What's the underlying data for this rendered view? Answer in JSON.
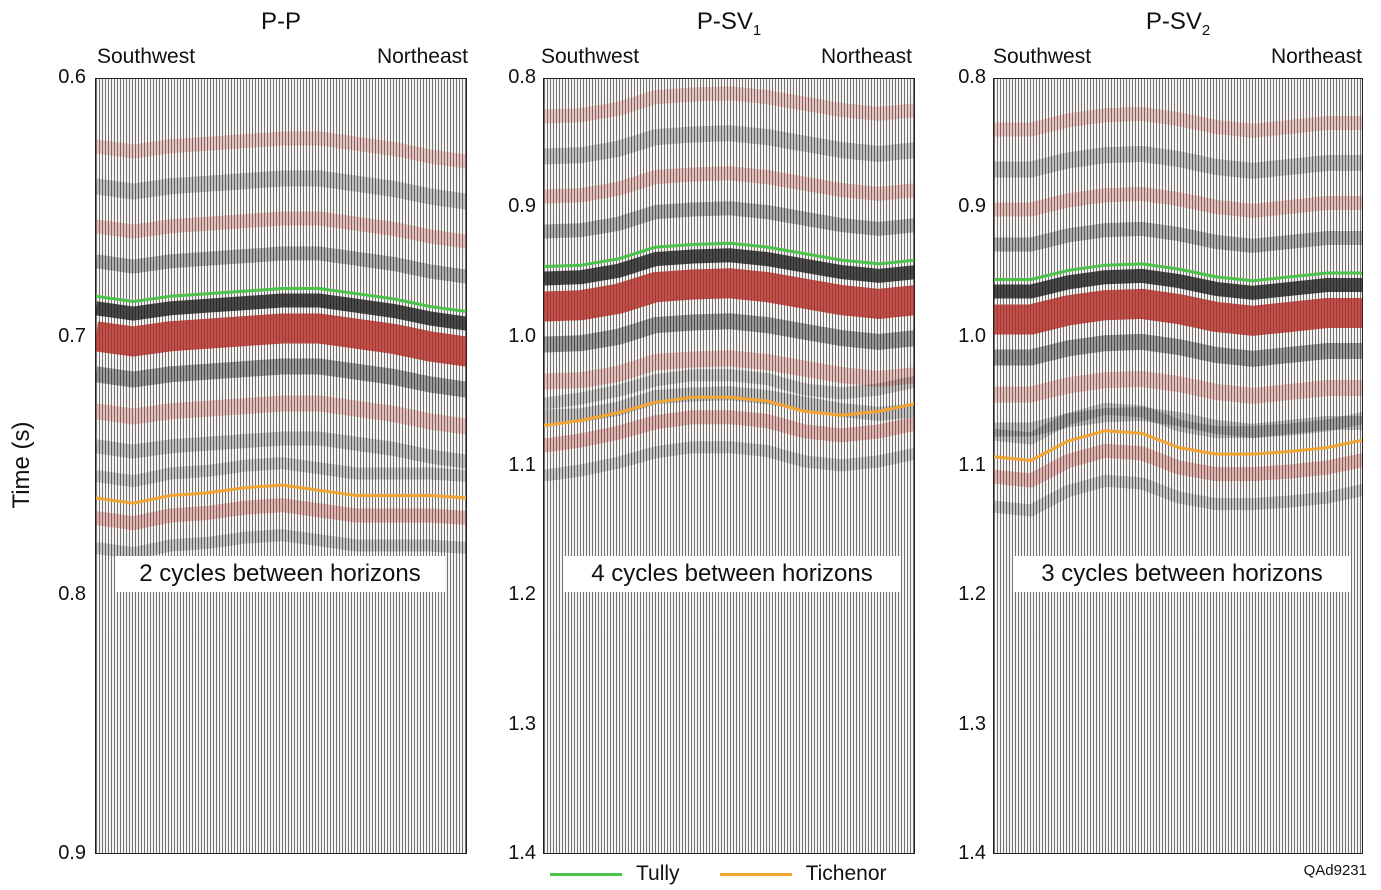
{
  "y_axis_label": "Time (s)",
  "figure_id": "QAd9231",
  "colors": {
    "tully": "#4cc34a",
    "tichenor": "#f2a532",
    "red_event": "#b02820",
    "black_event": "#111111"
  },
  "legend": [
    {
      "name": "Tully",
      "color": "#4cc34a"
    },
    {
      "name": "Tichenor",
      "color": "#f2a532"
    }
  ],
  "panels": [
    {
      "title_main": "P-P",
      "title_sub": "",
      "left_label": "Southwest",
      "right_label": "Northeast",
      "callout": "2 cycles between horizons",
      "yticks": [
        "0.6",
        "0.7",
        "0.8",
        "0.9"
      ]
    },
    {
      "title_main": "P-SV",
      "title_sub": "1",
      "left_label": "Southwest",
      "right_label": "Northeast",
      "callout": "4 cycles between horizons",
      "yticks": [
        "0.8",
        "0.9",
        "1.0",
        "1.1",
        "1.2",
        "1.3",
        "1.4"
      ]
    },
    {
      "title_main": "P-SV",
      "title_sub": "2",
      "left_label": "Southwest",
      "right_label": "Northeast",
      "callout": "3 cycles between horizons",
      "yticks": [
        "0.8",
        "0.9",
        "1.0",
        "1.1",
        "1.2",
        "1.3",
        "1.4"
      ]
    }
  ],
  "chart_data": [
    {
      "type": "line",
      "title": "P-P",
      "xlabel": "",
      "ylabel": "Time (s)",
      "x_labels": [
        "Southwest",
        "Northeast"
      ],
      "ylim": [
        0.9,
        0.6
      ],
      "yticks": [
        0.6,
        0.7,
        0.8,
        0.9
      ],
      "x": [
        0,
        0.1,
        0.2,
        0.3,
        0.4,
        0.5,
        0.6,
        0.7,
        0.8,
        0.9,
        1.0
      ],
      "series": [
        {
          "name": "Tully",
          "values": [
            0.684,
            0.686,
            0.684,
            0.683,
            0.682,
            0.681,
            0.681,
            0.683,
            0.685,
            0.688,
            0.69
          ]
        },
        {
          "name": "Tichenor",
          "values": [
            0.762,
            0.764,
            0.761,
            0.76,
            0.758,
            0.757,
            0.759,
            0.761,
            0.761,
            0.761,
            0.762
          ]
        }
      ],
      "annotations": [
        "2 cycles between horizons"
      ],
      "grid": false
    },
    {
      "type": "line",
      "title": "P-SV1",
      "xlabel": "",
      "ylabel": "Time (s)",
      "x_labels": [
        "Southwest",
        "Northeast"
      ],
      "ylim": [
        1.4,
        0.8
      ],
      "yticks": [
        0.8,
        0.9,
        1.0,
        1.1,
        1.2,
        1.3,
        1.4
      ],
      "x": [
        0,
        0.1,
        0.2,
        0.3,
        0.4,
        0.5,
        0.6,
        0.7,
        0.8,
        0.9,
        1.0
      ],
      "series": [
        {
          "name": "Tully",
          "values": [
            0.945,
            0.944,
            0.939,
            0.93,
            0.928,
            0.927,
            0.93,
            0.935,
            0.94,
            0.943,
            0.94
          ]
        },
        {
          "name": "Tichenor",
          "values": [
            1.068,
            1.064,
            1.058,
            1.05,
            1.046,
            1.046,
            1.049,
            1.057,
            1.06,
            1.057,
            1.051
          ]
        }
      ],
      "annotations": [
        "4 cycles between horizons"
      ],
      "grid": false
    },
    {
      "type": "line",
      "title": "P-SV2",
      "xlabel": "",
      "ylabel": "Time (s)",
      "x_labels": [
        "Southwest",
        "Northeast"
      ],
      "ylim": [
        1.4,
        0.8
      ],
      "yticks": [
        0.8,
        0.9,
        1.0,
        1.1,
        1.2,
        1.3,
        1.4
      ],
      "x": [
        0,
        0.1,
        0.2,
        0.3,
        0.4,
        0.5,
        0.6,
        0.7,
        0.8,
        0.9,
        1.0
      ],
      "series": [
        {
          "name": "Tully",
          "values": [
            0.955,
            0.955,
            0.948,
            0.944,
            0.943,
            0.947,
            0.953,
            0.956,
            0.953,
            0.95,
            0.95
          ]
        },
        {
          "name": "Tichenor",
          "values": [
            1.092,
            1.095,
            1.08,
            1.072,
            1.074,
            1.085,
            1.09,
            1.09,
            1.088,
            1.085,
            1.079
          ]
        }
      ],
      "annotations": [
        "3 cycles between horizons"
      ],
      "grid": false
    }
  ]
}
